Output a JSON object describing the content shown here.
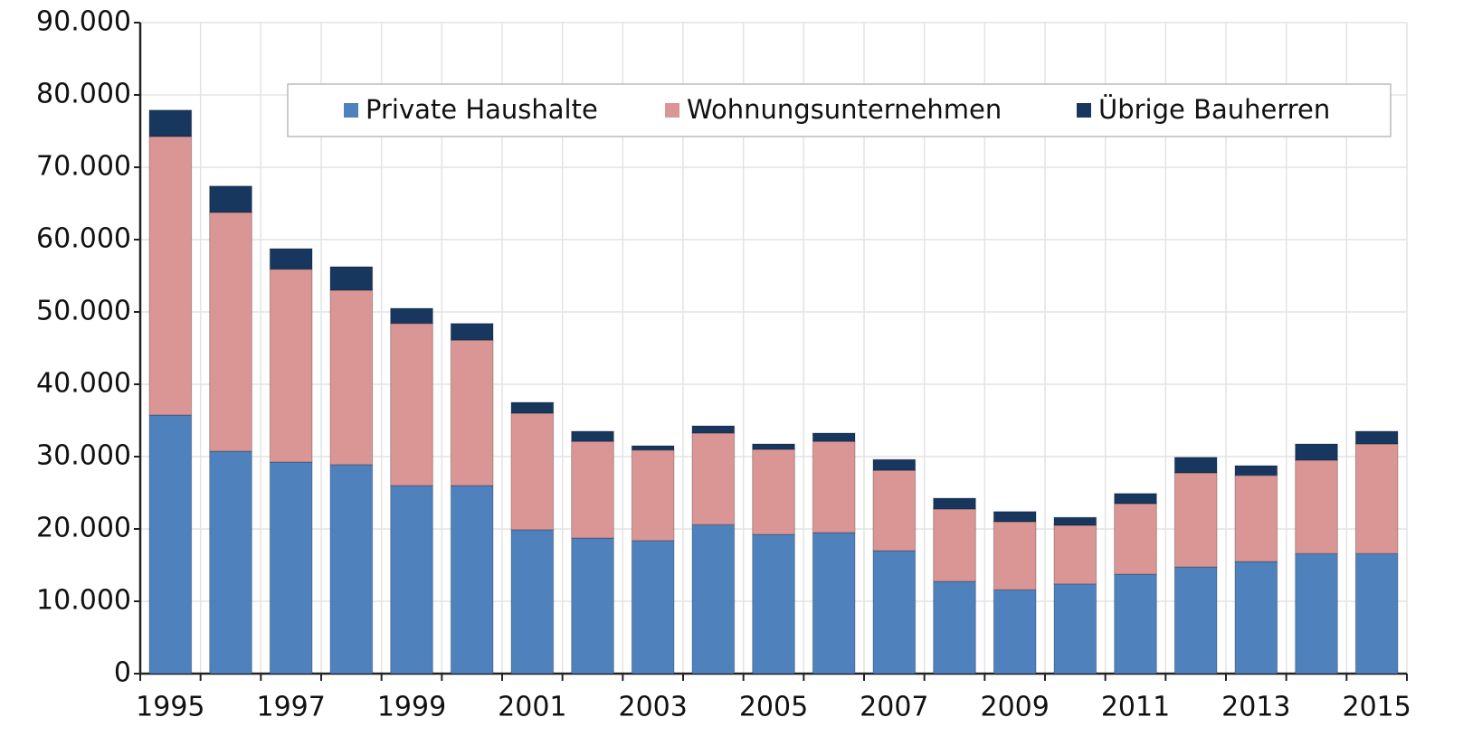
{
  "chart_data": {
    "type": "stacked_bar",
    "categories": [
      "1995",
      null,
      "1997",
      null,
      "1999",
      null,
      "2001",
      null,
      "2003",
      null,
      "2005",
      null,
      "2007",
      null,
      "2009",
      null,
      "2011",
      null,
      "2013",
      null,
      "2015"
    ],
    "series": [
      {
        "name": "Private Haushalte",
        "color": "#4f81bd",
        "values": [
          35750,
          30750,
          29250,
          28900,
          26000,
          26000,
          19900,
          18750,
          18400,
          20600,
          19250,
          19500,
          17000,
          12750,
          11600,
          12400,
          13750,
          14750,
          15500,
          16600,
          16600
        ]
      },
      {
        "name": "Wohnungsunternehmen",
        "color": "#d99694",
        "values": [
          38500,
          33000,
          26650,
          24100,
          22400,
          20100,
          16100,
          13350,
          12500,
          12650,
          11750,
          12600,
          11100,
          10000,
          9400,
          8100,
          9750,
          13000,
          11900,
          12900,
          15150
        ]
      },
      {
        "name": "Übrige Bauherren",
        "color": "#17375e",
        "values": [
          3650,
          3650,
          2850,
          3250,
          2100,
          2300,
          1500,
          1400,
          600,
          1000,
          750,
          1150,
          1500,
          1500,
          1400,
          1100,
          1400,
          2150,
          1350,
          2250,
          1750
        ]
      }
    ],
    "ylim": [
      0,
      90000
    ],
    "yticks": [
      0,
      {
        "value": 10000,
        "label": "10.000"
      },
      {
        "value": 20000,
        "label": "20.000"
      },
      {
        "value": 30000,
        "label": "30.000"
      },
      {
        "value": 40000,
        "label": "40.000"
      },
      {
        "value": 50000,
        "label": "50.000"
      },
      {
        "value": 60000,
        "label": "60.000"
      },
      {
        "value": 70000,
        "label": "70.000"
      },
      {
        "value": 80000,
        "label": "80.000"
      },
      {
        "value": 90000,
        "label": "90.000"
      }
    ],
    "grid": true,
    "legend": "top"
  }
}
